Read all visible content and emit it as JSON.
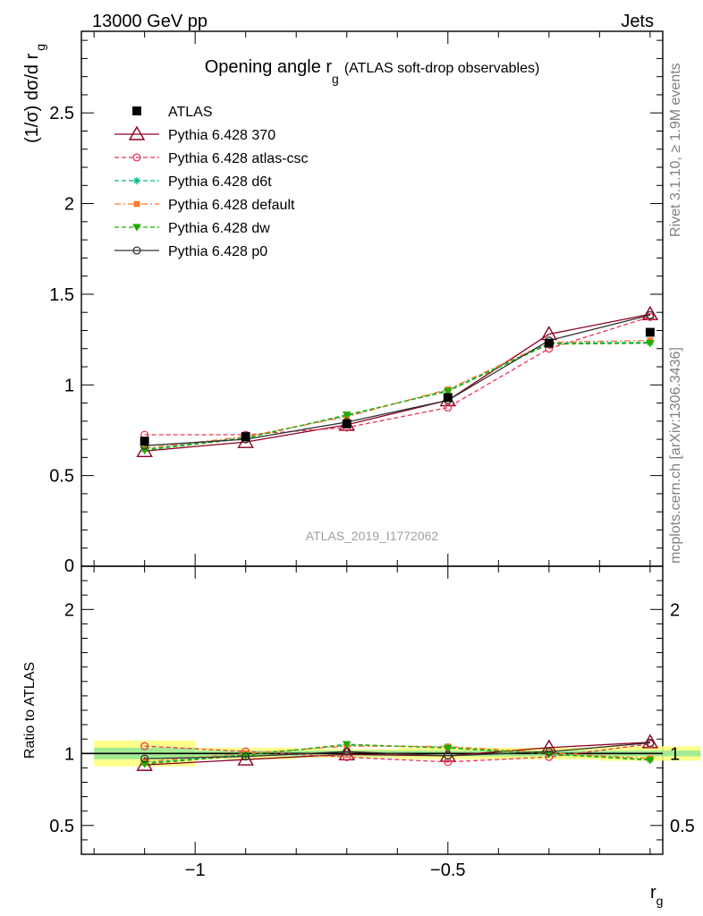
{
  "header": {
    "left": "13000 GeV pp",
    "right": "Jets"
  },
  "side_labels": {
    "rivet": "Rivet 3.1.10, ≥ 1.9M events",
    "mcplots": "mcplots.cern.ch [arXiv:1306.3436]"
  },
  "plot_id": "ATLAS_2019_I1772062",
  "chart_data": {
    "type": "line",
    "title": "Opening angle r",
    "title_sub": "g",
    "title_suffix": "(ATLAS soft-drop observables)",
    "ylabel": "(1/σ) dσ/d r",
    "ylabel_sub": "g",
    "xlabel": "r",
    "xlabel_sub": "g",
    "xlim": [
      -1.225,
      -0.075
    ],
    "main_ylim": [
      0,
      2.95
    ],
    "main_yticks": [
      "0.5",
      "1",
      "1.5",
      "2",
      "2.5"
    ],
    "main_yticks_vals": [
      0.5,
      1,
      1.5,
      2,
      2.5
    ],
    "main_ytick_zero": "0",
    "xticks": [
      "−1",
      "−0.5"
    ],
    "xticks_vals": [
      -1,
      -0.5
    ],
    "ratio_ylabel": "Ratio to ATLAS",
    "ratio_ylim": [
      0.3,
      2.3
    ],
    "ratio_yticks": [
      "0.5",
      "1",
      "2"
    ],
    "ratio_yticks_vals": [
      0.5,
      1,
      2
    ],
    "x": [
      -1.1,
      -0.9,
      -0.7,
      -0.5,
      -0.3,
      -0.1
    ],
    "reference": {
      "name": "ATLAS",
      "values": [
        0.69,
        0.715,
        0.785,
        0.93,
        1.23,
        1.29
      ],
      "band_inner_rel": [
        0.04,
        0.02,
        0.02,
        0.02,
        0.02,
        0.02
      ],
      "band_outer_rel": [
        0.09,
        0.04,
        0.03,
        0.04,
        0.04,
        0.05
      ]
    },
    "series": [
      {
        "name": "Pythia 6.428 370",
        "color": "#8b0020",
        "marker": "triangle-open",
        "dash": "solid",
        "values": [
          0.635,
          0.685,
          0.78,
          0.915,
          1.28,
          1.39
        ]
      },
      {
        "name": "Pythia 6.428 atlas-csc",
        "color": "#ee3355",
        "marker": "circle-open",
        "dash": "dashed",
        "values": [
          0.725,
          0.725,
          0.765,
          0.875,
          1.2,
          1.375
        ]
      },
      {
        "name": "Pythia 6.428 d6t",
        "color": "#00bb88",
        "marker": "asterisk",
        "dash": "dashed",
        "values": [
          0.645,
          0.71,
          0.83,
          0.97,
          1.23,
          1.235
        ]
      },
      {
        "name": "Pythia 6.428 default",
        "color": "#ff7722",
        "marker": "square-filled",
        "dash": "dashdot",
        "values": [
          0.65,
          0.715,
          0.825,
          0.975,
          1.235,
          1.245
        ]
      },
      {
        "name": "Pythia 6.428 dw",
        "color": "#22aa00",
        "marker": "triangle-down-filled",
        "dash": "dashed",
        "values": [
          0.64,
          0.705,
          0.835,
          0.965,
          1.225,
          1.23
        ]
      },
      {
        "name": "Pythia 6.428 p0",
        "color": "#333333",
        "marker": "circle-open",
        "dash": "solid",
        "values": [
          0.665,
          0.7,
          0.795,
          0.915,
          1.245,
          1.385
        ]
      }
    ]
  }
}
